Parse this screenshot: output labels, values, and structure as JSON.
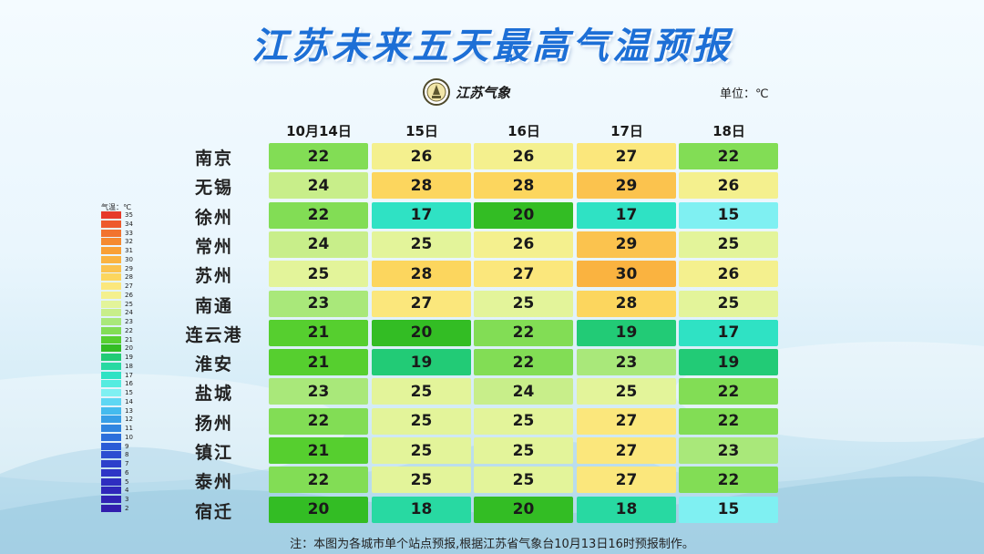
{
  "header": {
    "title": "江苏未来五天最高气温预报",
    "logo_text": "江苏气象",
    "unit_label": "单位：℃"
  },
  "legend": {
    "title": "气温：℃",
    "items": [
      {
        "label": "35",
        "color": "#e63a2a"
      },
      {
        "label": "34",
        "color": "#ee5a2c"
      },
      {
        "label": "33",
        "color": "#f2732e"
      },
      {
        "label": "32",
        "color": "#f58a30"
      },
      {
        "label": "31",
        "color": "#f9a035"
      },
      {
        "label": "30",
        "color": "#fab340"
      },
      {
        "label": "29",
        "color": "#fbc34e"
      },
      {
        "label": "28",
        "color": "#fcd65e"
      },
      {
        "label": "27",
        "color": "#fbe77c"
      },
      {
        "label": "26",
        "color": "#f4f08e"
      },
      {
        "label": "25",
        "color": "#e3f49a"
      },
      {
        "label": "24",
        "color": "#c8ee8a"
      },
      {
        "label": "23",
        "color": "#a9e87a"
      },
      {
        "label": "22",
        "color": "#82dd55"
      },
      {
        "label": "21",
        "color": "#56cf2f"
      },
      {
        "label": "20",
        "color": "#33bd24"
      },
      {
        "label": "19",
        "color": "#22cb76"
      },
      {
        "label": "18",
        "color": "#28d9a2"
      },
      {
        "label": "17",
        "color": "#2fe2c4"
      },
      {
        "label": "16",
        "color": "#55ece0"
      },
      {
        "label": "15",
        "color": "#7ff0f2"
      },
      {
        "label": "14",
        "color": "#5ed7f3"
      },
      {
        "label": "13",
        "color": "#44bbee"
      },
      {
        "label": "12",
        "color": "#379fe7"
      },
      {
        "label": "11",
        "color": "#2f85e0"
      },
      {
        "label": "10",
        "color": "#2b6fdb"
      },
      {
        "label": "9",
        "color": "#2a5cd6"
      },
      {
        "label": "8",
        "color": "#2b4dd1"
      },
      {
        "label": "7",
        "color": "#2c40cb"
      },
      {
        "label": "6",
        "color": "#2d35c6"
      },
      {
        "label": "5",
        "color": "#2e2dc0"
      },
      {
        "label": "4",
        "color": "#2f27ba"
      },
      {
        "label": "3",
        "color": "#3022b4"
      },
      {
        "label": "2",
        "color": "#311eae"
      }
    ]
  },
  "chart_data": {
    "type": "table",
    "columns": [
      "10月14日",
      "15日",
      "16日",
      "17日",
      "18日"
    ],
    "rows": [
      {
        "city": "南京",
        "values": [
          22,
          26,
          26,
          27,
          22
        ]
      },
      {
        "city": "无锡",
        "values": [
          24,
          28,
          28,
          29,
          26
        ]
      },
      {
        "city": "徐州",
        "values": [
          22,
          17,
          20,
          17,
          15
        ]
      },
      {
        "city": "常州",
        "values": [
          24,
          25,
          26,
          29,
          25
        ]
      },
      {
        "city": "苏州",
        "values": [
          25,
          28,
          27,
          30,
          26
        ]
      },
      {
        "city": "南通",
        "values": [
          23,
          27,
          25,
          28,
          25
        ]
      },
      {
        "city": "连云港",
        "values": [
          21,
          20,
          22,
          19,
          17
        ]
      },
      {
        "city": "淮安",
        "values": [
          21,
          19,
          22,
          23,
          19
        ]
      },
      {
        "city": "盐城",
        "values": [
          23,
          25,
          24,
          25,
          22
        ]
      },
      {
        "city": "扬州",
        "values": [
          22,
          25,
          25,
          27,
          22
        ]
      },
      {
        "city": "镇江",
        "values": [
          21,
          25,
          25,
          27,
          23
        ]
      },
      {
        "city": "泰州",
        "values": [
          22,
          25,
          25,
          27,
          22
        ]
      },
      {
        "city": "宿迁",
        "values": [
          20,
          18,
          20,
          18,
          15
        ]
      }
    ]
  },
  "footer": {
    "note": "注：本图为各城市单个站点预报,根据江苏省气象台10月13日16时预报制作。"
  }
}
